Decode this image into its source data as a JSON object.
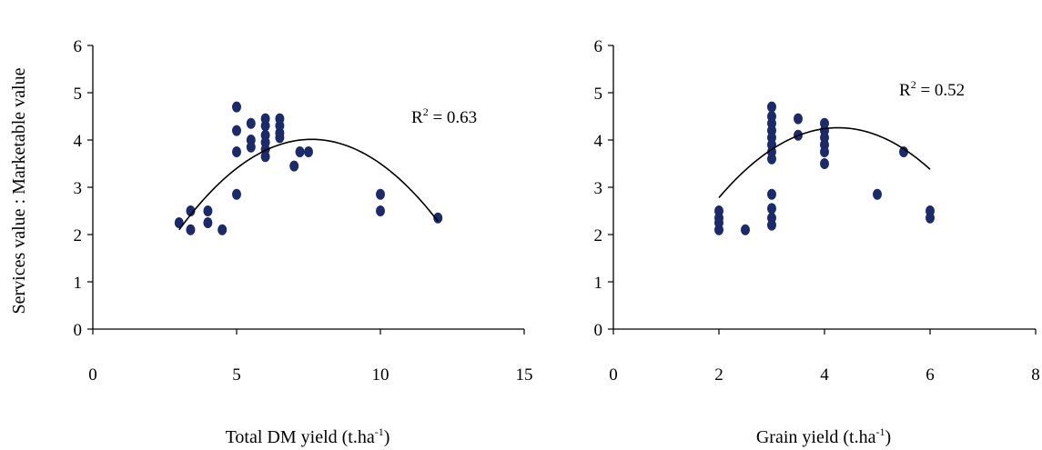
{
  "chart_data": [
    {
      "type": "scatter",
      "title": "",
      "ylabel": "Services value : Marketable value",
      "xlabel": "Total DM yield (t.ha-1)",
      "xlabel_parts": {
        "base": "Total DM yield (t.ha",
        "sup": "-1",
        "close": ")"
      },
      "xlim": [
        0,
        15
      ],
      "ylim": [
        0,
        6
      ],
      "xticks": [
        0,
        5,
        10,
        15
      ],
      "yticks": [
        0,
        1,
        2,
        3,
        4,
        5,
        6
      ],
      "grid": false,
      "legend": "none",
      "annotation": {
        "base": "R",
        "sup": "2",
        "rest": " = 0.63"
      },
      "marker_color": "#1b2a6b",
      "line_color": "#000000",
      "points": [
        [
          3.0,
          2.25
        ],
        [
          3.4,
          2.5
        ],
        [
          3.4,
          2.1
        ],
        [
          4.0,
          2.5
        ],
        [
          4.0,
          2.25
        ],
        [
          4.5,
          2.1
        ],
        [
          5.0,
          4.7
        ],
        [
          5.0,
          4.2
        ],
        [
          5.0,
          3.75
        ],
        [
          5.0,
          2.85
        ],
        [
          5.5,
          4.35
        ],
        [
          5.5,
          4.0
        ],
        [
          5.5,
          3.85
        ],
        [
          6.0,
          4.45
        ],
        [
          6.0,
          4.3
        ],
        [
          6.0,
          4.1
        ],
        [
          6.0,
          3.95
        ],
        [
          6.0,
          3.8
        ],
        [
          6.0,
          3.65
        ],
        [
          6.5,
          4.45
        ],
        [
          6.5,
          4.3
        ],
        [
          6.5,
          4.15
        ],
        [
          6.5,
          4.05
        ],
        [
          7.0,
          3.45
        ],
        [
          7.2,
          3.75
        ],
        [
          7.5,
          3.75
        ],
        [
          10.0,
          2.85
        ],
        [
          10.0,
          2.5
        ],
        [
          12.0,
          2.35
        ]
      ],
      "trendline": {
        "type": "polynomial",
        "coefficients": [
          -1.2,
          1.37,
          -0.09
        ],
        "x_range": [
          3,
          12
        ]
      }
    },
    {
      "type": "scatter",
      "title": "",
      "ylabel": "",
      "xlabel": "Grain yield (t.ha-1)",
      "xlabel_parts": {
        "base": "Grain yield (t.ha",
        "sup": "-1",
        "close": ")"
      },
      "xlim": [
        0,
        8
      ],
      "ylim": [
        0,
        6
      ],
      "xticks": [
        0,
        2,
        4,
        6,
        8
      ],
      "yticks": [
        0,
        1,
        2,
        3,
        4,
        5,
        6
      ],
      "grid": false,
      "legend": "none",
      "annotation": {
        "base": "R",
        "sup": "2",
        "rest": " = 0.52"
      },
      "marker_color": "#1b2a6b",
      "line_color": "#000000",
      "points": [
        [
          2.0,
          2.5
        ],
        [
          2.0,
          2.35
        ],
        [
          2.0,
          2.25
        ],
        [
          2.0,
          2.1
        ],
        [
          2.5,
          2.1
        ],
        [
          3.0,
          4.7
        ],
        [
          3.0,
          4.5
        ],
        [
          3.0,
          4.35
        ],
        [
          3.0,
          4.2
        ],
        [
          3.0,
          4.05
        ],
        [
          3.0,
          3.9
        ],
        [
          3.0,
          3.75
        ],
        [
          3.0,
          3.6
        ],
        [
          3.0,
          2.85
        ],
        [
          3.0,
          2.55
        ],
        [
          3.0,
          2.35
        ],
        [
          3.0,
          2.2
        ],
        [
          3.5,
          4.45
        ],
        [
          3.5,
          4.1
        ],
        [
          4.0,
          4.35
        ],
        [
          4.0,
          4.2
        ],
        [
          4.0,
          4.05
        ],
        [
          4.0,
          3.9
        ],
        [
          4.0,
          3.75
        ],
        [
          4.0,
          3.5
        ],
        [
          5.0,
          2.85
        ],
        [
          5.5,
          3.75
        ],
        [
          6.0,
          2.5
        ],
        [
          6.0,
          2.35
        ]
      ],
      "trendline": {
        "type": "polynomial",
        "coefficients": [
          -1.0,
          2.47,
          -0.29
        ],
        "x_range": [
          2,
          6
        ]
      }
    }
  ]
}
